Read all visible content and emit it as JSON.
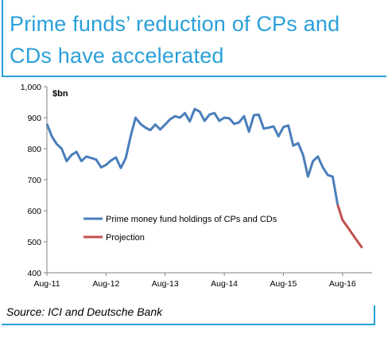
{
  "title": "Prime funds’ reduction of CPs and CDs have accelerated",
  "source": "Source: ICI and Deutsche Bank",
  "chart_data": {
    "type": "line",
    "title": "",
    "xlabel": "",
    "ylabel": "$bn",
    "ylim": [
      400,
      1000
    ],
    "yticks": [
      400,
      500,
      600,
      700,
      800,
      900,
      1000
    ],
    "ytick_labels": [
      "400",
      "500",
      "600",
      "700",
      "800",
      "900",
      "1,000"
    ],
    "xticks": [
      "Aug-11",
      "Aug-12",
      "Aug-13",
      "Aug-14",
      "Aug-15",
      "Aug-16"
    ],
    "grid": false,
    "legend_position": "lower-left",
    "series": [
      {
        "name": "Prime money fund holdings of CPs and CDs",
        "color": "#4a7ebb",
        "x": [
          "Aug-11",
          "Sep-11",
          "Oct-11",
          "Nov-11",
          "Dec-11",
          "Jan-12",
          "Feb-12",
          "Mar-12",
          "Apr-12",
          "May-12",
          "Jun-12",
          "Jul-12",
          "Aug-12",
          "Sep-12",
          "Oct-12",
          "Nov-12",
          "Dec-12",
          "Jan-13",
          "Feb-13",
          "Mar-13",
          "Apr-13",
          "May-13",
          "Jun-13",
          "Jul-13",
          "Aug-13",
          "Sep-13",
          "Oct-13",
          "Nov-13",
          "Dec-13",
          "Jan-14",
          "Feb-14",
          "Mar-14",
          "Apr-14",
          "May-14",
          "Jun-14",
          "Jul-14",
          "Aug-14",
          "Sep-14",
          "Oct-14",
          "Nov-14",
          "Dec-14",
          "Jan-15",
          "Feb-15",
          "Mar-15",
          "Apr-15",
          "May-15",
          "Jun-15",
          "Jul-15",
          "Aug-15",
          "Sep-15",
          "Oct-15",
          "Nov-15",
          "Dec-15",
          "Jan-16",
          "Feb-16",
          "Mar-16",
          "Apr-16",
          "May-16",
          "Jun-16",
          "Jul-16"
        ],
        "values": [
          880,
          840,
          815,
          800,
          760,
          780,
          790,
          760,
          775,
          770,
          765,
          740,
          748,
          762,
          772,
          738,
          770,
          840,
          900,
          880,
          868,
          860,
          878,
          862,
          878,
          895,
          905,
          900,
          915,
          888,
          928,
          920,
          890,
          910,
          915,
          890,
          900,
          898,
          880,
          885,
          905,
          855,
          908,
          910,
          865,
          868,
          872,
          840,
          870,
          875,
          810,
          818,
          780,
          710,
          760,
          775,
          740,
          715,
          710,
          620
        ],
        "x_end_label_month": "Jul-16"
      },
      {
        "name": "Projection",
        "color": "#c0504d",
        "x": [
          "Jul-16",
          "Aug-16",
          "Sep-16",
          "Oct-16",
          "Nov-16",
          "Dec-16"
        ],
        "values": [
          620,
          570,
          548,
          525,
          502,
          480
        ]
      }
    ]
  }
}
